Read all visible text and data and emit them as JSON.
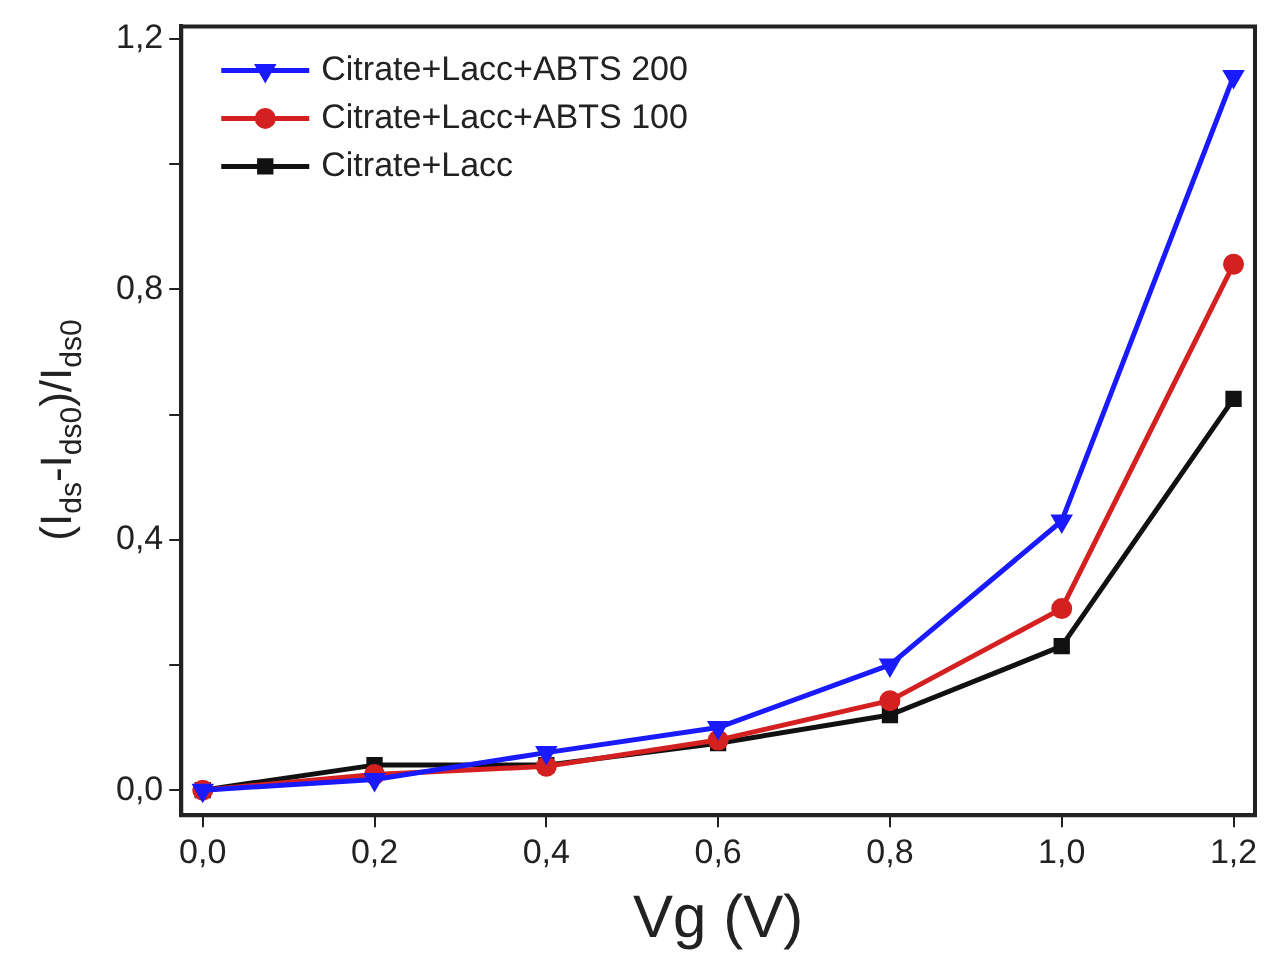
{
  "chart_data": {
    "type": "line",
    "xlabel": "Vg (V)",
    "ylabel": "(I$_{ds}$-I$_{ds0}$)/I$_{ds0}$",
    "x": [
      0,
      0.2,
      0.4,
      0.6,
      0.8,
      1.0,
      1.2
    ],
    "series": [
      {
        "name": "Citrate+Lacc+ABTS 200",
        "color": "#1a1aff",
        "marker": "triangle",
        "values": [
          0,
          0.017,
          0.06,
          0.1,
          0.2,
          0.43,
          1.14
        ]
      },
      {
        "name": "Citrate+Lacc+ABTS 100",
        "color": "#d42020",
        "marker": "circle",
        "values": [
          0,
          0.025,
          0.038,
          0.08,
          0.143,
          0.29,
          0.84
        ]
      },
      {
        "name": "Citrate+Lacc",
        "color": "#111111",
        "marker": "square",
        "values": [
          0,
          0.04,
          0.04,
          0.075,
          0.12,
          0.23,
          0.625
        ]
      }
    ],
    "xlim": [
      -0.025,
      1.225
    ],
    "ylim": [
      -0.04,
      1.22
    ],
    "xticks": [
      {
        "value": 0,
        "label": "0,0"
      },
      {
        "value": 0.2,
        "label": "0,2"
      },
      {
        "value": 0.4,
        "label": "0,4"
      },
      {
        "value": 0.6,
        "label": "0,6"
      },
      {
        "value": 0.8,
        "label": "0,8"
      },
      {
        "value": 1.0,
        "label": "1,0"
      },
      {
        "value": 1.2,
        "label": "1,2"
      }
    ],
    "yticks": [
      {
        "value": 0,
        "label": "0,0"
      },
      {
        "value": 0.2,
        "label": null
      },
      {
        "value": 0.4,
        "label": "0,4"
      },
      {
        "value": 0.6,
        "label": null
      },
      {
        "value": 0.8,
        "label": "0,8"
      },
      {
        "value": 1.0,
        "label": null
      },
      {
        "value": 1.2,
        "label": "1,2"
      }
    ],
    "grid": false,
    "legend": "top left",
    "line_style": "solid"
  }
}
